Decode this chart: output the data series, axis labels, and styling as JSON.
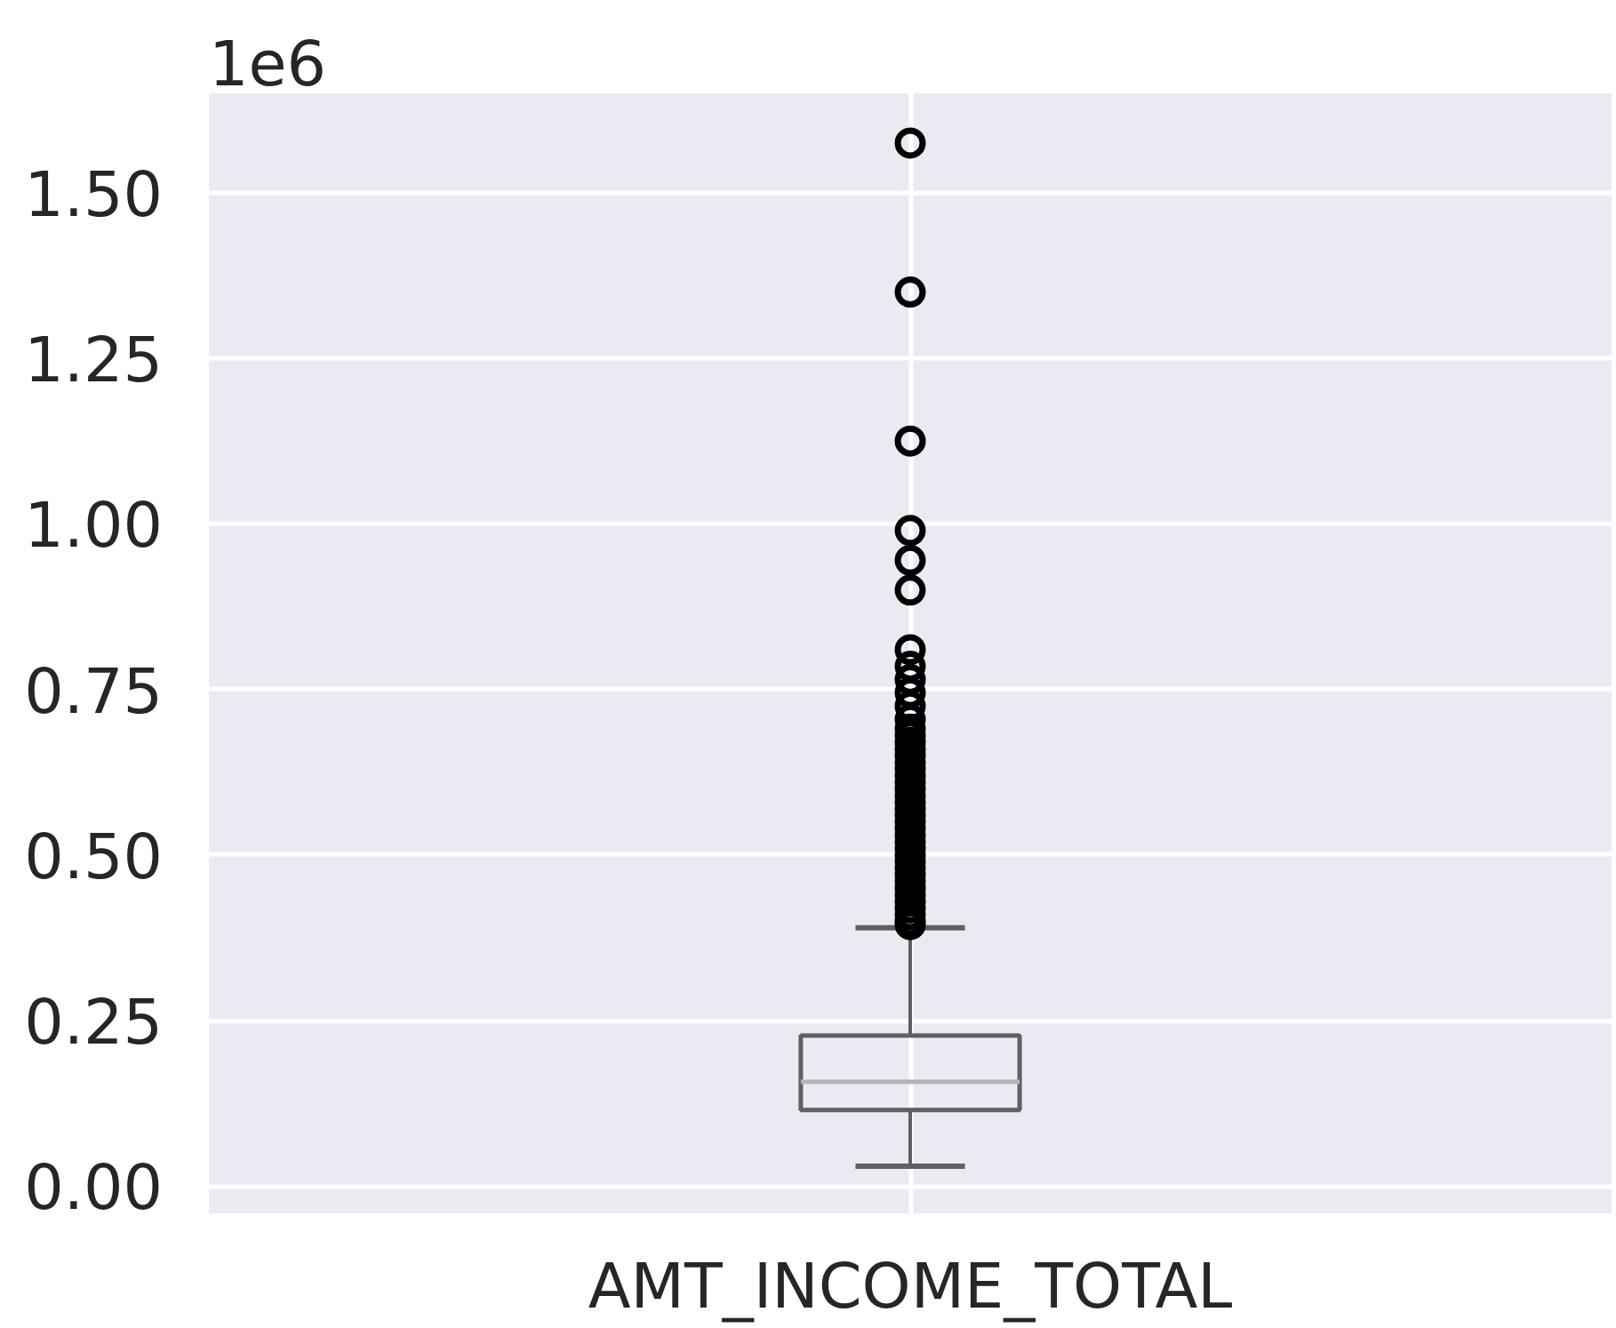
{
  "chart_data": {
    "type": "box",
    "categories": [
      "AMT_INCOME_TOTAL"
    ],
    "boxes": [
      {
        "low": 0.03,
        "q1": 0.115,
        "median": 0.1575,
        "q3": 0.2275,
        "high": 0.39,
        "outliers": [
          1.575,
          1.35,
          1.125,
          0.99,
          0.945,
          0.9,
          0.81,
          0.785,
          0.765,
          0.745,
          0.725,
          0.705,
          0.69,
          0.68,
          0.67,
          0.66,
          0.65,
          0.64,
          0.63,
          0.62,
          0.61,
          0.6,
          0.59,
          0.58,
          0.57,
          0.56,
          0.55,
          0.54,
          0.53,
          0.52,
          0.51,
          0.5,
          0.49,
          0.48,
          0.47,
          0.46,
          0.45,
          0.44,
          0.43,
          0.42,
          0.41,
          0.4,
          0.395
        ]
      }
    ],
    "color": "#606060",
    "marker": "circle",
    "ylim": [
      -0.041,
      1.65
    ],
    "yticks": [
      {
        "value": 0,
        "label": "0.00"
      },
      0.25,
      {
        "value": 0.5,
        "label": "0.50"
      },
      0.75,
      {
        "value": 1,
        "label": "1.00"
      },
      1.25,
      {
        "value": 1.5,
        "label": "1.50"
      }
    ],
    "grid": true,
    "annotations": [
      "1e6"
    ]
  }
}
